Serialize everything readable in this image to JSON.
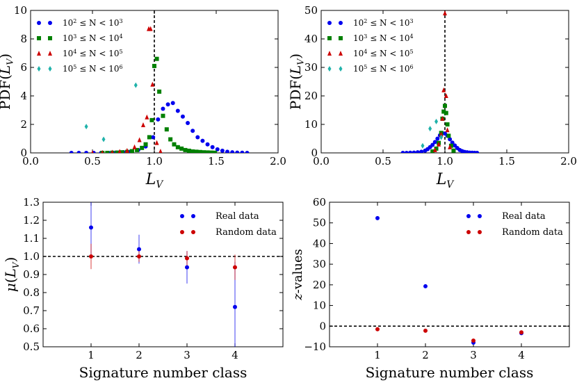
{
  "chart_data": [
    {
      "type": "scatter",
      "panel": "top-left",
      "xlabel": "L_V",
      "ylabel": "PDF(L_V)",
      "xlim": [
        0.0,
        2.0
      ],
      "ylim": [
        0,
        10
      ],
      "xticks": [
        0.0,
        0.5,
        1.0,
        1.5,
        2.0
      ],
      "xtick_labels": [
        "0.0",
        "0.5",
        "1.0",
        "1.5",
        "2.0"
      ],
      "yticks": [
        0,
        2,
        4,
        6,
        8,
        10
      ],
      "ytick_labels": [
        "0",
        "2",
        "4",
        "6",
        "8",
        "10"
      ],
      "vline": 1.0,
      "legend": "top-left",
      "series": [
        {
          "name": "10^2 ≤ N < 10^3",
          "color": "#0000ee",
          "marker": "circle",
          "x": [
            0.33,
            0.39,
            0.45,
            0.51,
            0.57,
            0.63,
            0.69,
            0.75,
            0.81,
            0.87,
            0.93,
            0.99,
            1.03,
            1.07,
            1.11,
            1.15,
            1.19,
            1.23,
            1.27,
            1.31,
            1.35,
            1.39,
            1.43,
            1.47,
            1.51,
            1.55,
            1.59,
            1.63,
            1.67,
            1.71,
            1.75
          ],
          "y": [
            0.0,
            0.0,
            0.0,
            0.0,
            0.0,
            0.0,
            0.02,
            0.05,
            0.1,
            0.2,
            0.45,
            1.1,
            2.35,
            3.1,
            3.4,
            3.5,
            2.95,
            2.55,
            2.1,
            1.55,
            1.1,
            0.85,
            0.6,
            0.4,
            0.25,
            0.15,
            0.08,
            0.04,
            0.02,
            0.01,
            0.0
          ]
        },
        {
          "name": "10^3 ≤ N < 10^4",
          "color": "#008000",
          "marker": "square",
          "x": [
            0.58,
            0.62,
            0.66,
            0.7,
            0.74,
            0.78,
            0.82,
            0.86,
            0.9,
            0.93,
            0.96,
            0.98,
            1.0,
            1.02,
            1.04,
            1.07,
            1.1,
            1.13,
            1.16,
            1.19,
            1.22,
            1.25,
            1.28,
            1.31,
            1.34,
            1.37,
            1.4,
            1.43,
            1.46,
            1.49
          ],
          "y": [
            0.0,
            0.0,
            0.01,
            0.02,
            0.04,
            0.07,
            0.12,
            0.2,
            0.35,
            0.6,
            1.1,
            2.3,
            6.1,
            6.6,
            4.3,
            2.6,
            1.65,
            0.95,
            0.6,
            0.4,
            0.3,
            0.2,
            0.15,
            0.1,
            0.08,
            0.06,
            0.04,
            0.03,
            0.02,
            0.01
          ]
        },
        {
          "name": "10^4 ≤ N < 10^5",
          "color": "#cc0000",
          "marker": "triangle",
          "x": [
            0.5,
            0.58,
            0.66,
            0.72,
            0.78,
            0.84,
            0.88,
            0.91,
            0.94,
            0.955,
            0.97,
            0.985,
            1.02,
            1.05
          ],
          "y": [
            0.0,
            0.01,
            0.03,
            0.08,
            0.15,
            0.4,
            0.9,
            1.95,
            2.5,
            8.7,
            8.7,
            4.8,
            0.7,
            0.1
          ]
        },
        {
          "name": "10^5 ≤ N < 10^6",
          "color": "#20b2aa",
          "marker": "diamond",
          "x": [
            0.45,
            0.59,
            0.85
          ],
          "y": [
            1.85,
            0.95,
            4.75
          ]
        }
      ]
    },
    {
      "type": "scatter",
      "panel": "top-right",
      "xlabel": "L_V",
      "ylabel": "PDF(L_V)",
      "xlim": [
        0.0,
        2.0
      ],
      "ylim": [
        0,
        50
      ],
      "xticks": [
        0.0,
        0.5,
        1.0,
        1.5,
        2.0
      ],
      "xtick_labels": [
        "0.0",
        "0.5",
        "1.0",
        "1.5",
        "2.0"
      ],
      "yticks": [
        0,
        10,
        20,
        30,
        40,
        50
      ],
      "ytick_labels": [
        "0",
        "10",
        "20",
        "30",
        "40",
        "50"
      ],
      "vline": 1.0,
      "legend": "top-left",
      "series": [
        {
          "name": "10^2 ≤ N < 10^3",
          "color": "#0000ee",
          "marker": "circle",
          "x": [
            0.66,
            0.69,
            0.72,
            0.75,
            0.78,
            0.81,
            0.84,
            0.86,
            0.88,
            0.9,
            0.92,
            0.94,
            0.96,
            0.98,
            1.0,
            1.02,
            1.04,
            1.06,
            1.08,
            1.1,
            1.12,
            1.14,
            1.16,
            1.18,
            1.2,
            1.22,
            1.24,
            1.26
          ],
          "y": [
            0.0,
            0.0,
            0.05,
            0.1,
            0.2,
            0.4,
            0.8,
            1.3,
            2.0,
            2.8,
            3.8,
            5.0,
            6.2,
            6.9,
            6.8,
            6.0,
            4.8,
            3.6,
            2.6,
            1.7,
            1.0,
            0.6,
            0.35,
            0.2,
            0.1,
            0.05,
            0.02,
            0.0
          ]
        },
        {
          "name": "10^3 ≤ N < 10^4",
          "color": "#008000",
          "marker": "square",
          "x": [
            0.9,
            0.93,
            0.95,
            0.97,
            0.98,
            0.99,
            1.0,
            1.01,
            1.02,
            1.03,
            1.05,
            1.07
          ],
          "y": [
            0.5,
            1.5,
            3.5,
            7.0,
            12.0,
            14.5,
            16.5,
            14.0,
            10.0,
            6.0,
            2.5,
            0.8
          ]
        },
        {
          "name": "10^4 ≤ N < 10^5",
          "color": "#cc0000",
          "marker": "triangle",
          "x": [
            0.92,
            0.95,
            0.97,
            0.98,
            0.99,
            1.0,
            1.01,
            1.02,
            1.04
          ],
          "y": [
            1.0,
            3.0,
            6.5,
            12.0,
            22.0,
            49.0,
            20.0,
            8.0,
            2.0
          ]
        },
        {
          "name": "10^5 ≤ N < 10^6",
          "color": "#20b2aa",
          "marker": "diamond",
          "x": [
            0.82,
            0.88,
            0.93,
            0.97
          ],
          "y": [
            2.5,
            8.5,
            11.0,
            5.5
          ]
        }
      ]
    },
    {
      "type": "scatter",
      "panel": "bottom-left",
      "xlabel": "Signature number class",
      "ylabel": "μ(L_V)",
      "xlim": [
        0,
        5
      ],
      "ylim": [
        0.5,
        1.3
      ],
      "xticks": [
        1,
        2,
        3,
        4
      ],
      "xtick_labels": [
        "1",
        "2",
        "3",
        "4"
      ],
      "yticks": [
        0.5,
        0.6,
        0.7,
        0.8,
        0.9,
        1.0,
        1.1,
        1.2,
        1.3
      ],
      "ytick_labels": [
        "0.5",
        "0.6",
        "0.7",
        "0.8",
        "0.9",
        "1.0",
        "1.1",
        "1.2",
        "1.3"
      ],
      "hline": 1.0,
      "legend": "top-right",
      "series": [
        {
          "name": "Real data",
          "color": "#0000ee",
          "marker": "circle",
          "x": [
            1,
            2,
            3,
            4
          ],
          "y": [
            1.16,
            1.04,
            0.94,
            0.72
          ],
          "yerr": [
            0.15,
            0.08,
            0.09,
            0.25
          ]
        },
        {
          "name": "Random data",
          "color": "#cc0000",
          "marker": "circle",
          "x": [
            1,
            2,
            3,
            4
          ],
          "y": [
            1.0,
            1.0,
            0.99,
            0.94
          ],
          "yerr": [
            0.07,
            0.03,
            0.04,
            0.07
          ]
        }
      ]
    },
    {
      "type": "scatter",
      "panel": "bottom-right",
      "xlabel": "Signature number class",
      "ylabel": "z-values",
      "xlim": [
        0,
        5
      ],
      "ylim": [
        -10,
        60
      ],
      "xticks": [
        1,
        2,
        3,
        4
      ],
      "xtick_labels": [
        "1",
        "2",
        "3",
        "4"
      ],
      "yticks": [
        -10,
        0,
        10,
        20,
        30,
        40,
        50,
        60
      ],
      "ytick_labels": [
        "−10",
        "0",
        "10",
        "20",
        "30",
        "40",
        "50",
        "60"
      ],
      "hline": 0,
      "legend": "top-right",
      "series": [
        {
          "name": "Real data",
          "color": "#0000ee",
          "marker": "circle",
          "x": [
            1,
            2,
            3,
            4
          ],
          "y": [
            52.3,
            19.3,
            -8.0,
            -3.4
          ]
        },
        {
          "name": "Random data",
          "color": "#cc0000",
          "marker": "circle",
          "x": [
            1,
            2,
            3,
            4
          ],
          "y": [
            -1.5,
            -2.2,
            -7.0,
            -3.0
          ]
        }
      ]
    }
  ]
}
